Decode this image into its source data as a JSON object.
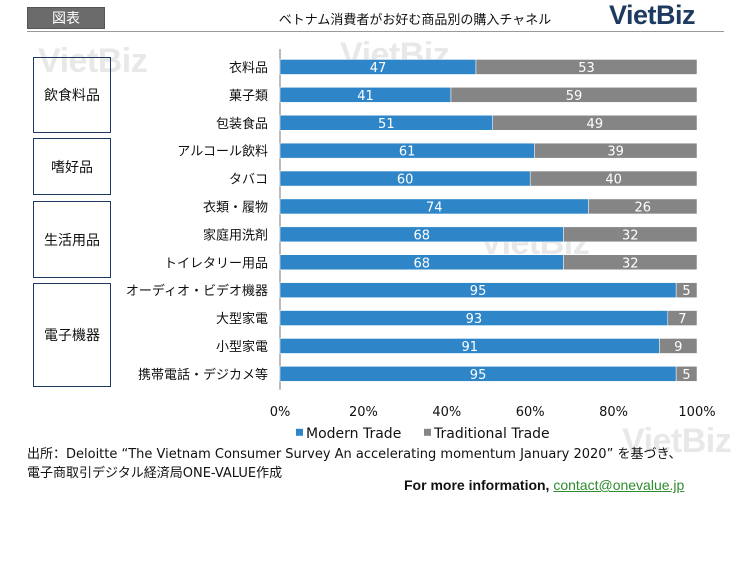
{
  "header": {
    "tag": "図表",
    "title": "ベトナム消費者がお好む商品別の購入チャネル",
    "logo": "VietBiz",
    "watermark": "VietBiz"
  },
  "groups": [
    {
      "label": "飲食料品"
    },
    {
      "label": "嗜好品"
    },
    {
      "label": "生活用品"
    },
    {
      "label": "電子機器"
    }
  ],
  "chart_data": {
    "type": "bar",
    "orientation": "horizontal",
    "stacked": "percent",
    "categories": [
      "衣料品",
      "菓子類",
      "包装食品",
      "アルコール飲料",
      "タバコ",
      "衣類・履物",
      "家庭用洗剤",
      "トイレタリー用品",
      "オーディオ・ビデオ機器",
      "大型家電",
      "小型家電",
      "携帯電話・デジカメ等"
    ],
    "series": [
      {
        "name": "Modern Trade",
        "color": "#2e86c8",
        "values": [
          47,
          41,
          51,
          61,
          60,
          74,
          68,
          68,
          95,
          93,
          91,
          95
        ]
      },
      {
        "name": "Traditional Trade",
        "color": "#858585",
        "values": [
          53,
          59,
          49,
          39,
          40,
          26,
          32,
          32,
          5,
          7,
          9,
          5
        ]
      }
    ],
    "xlim": [
      0,
      100
    ],
    "xticks": [
      "0%",
      "20%",
      "40%",
      "60%",
      "80%",
      "100%"
    ],
    "legend": "bottom",
    "grid": false
  },
  "footer": {
    "source_line1": "出所：Deloitte “The Vietnam Consumer Survey An accelerating momentum January 2020” を基づき、",
    "source_line2": "電子商取引デジタル経済局ONE-VALUE作成",
    "more_info_label": "For more information, ",
    "contact_email": "contact@onevalue.jp"
  }
}
